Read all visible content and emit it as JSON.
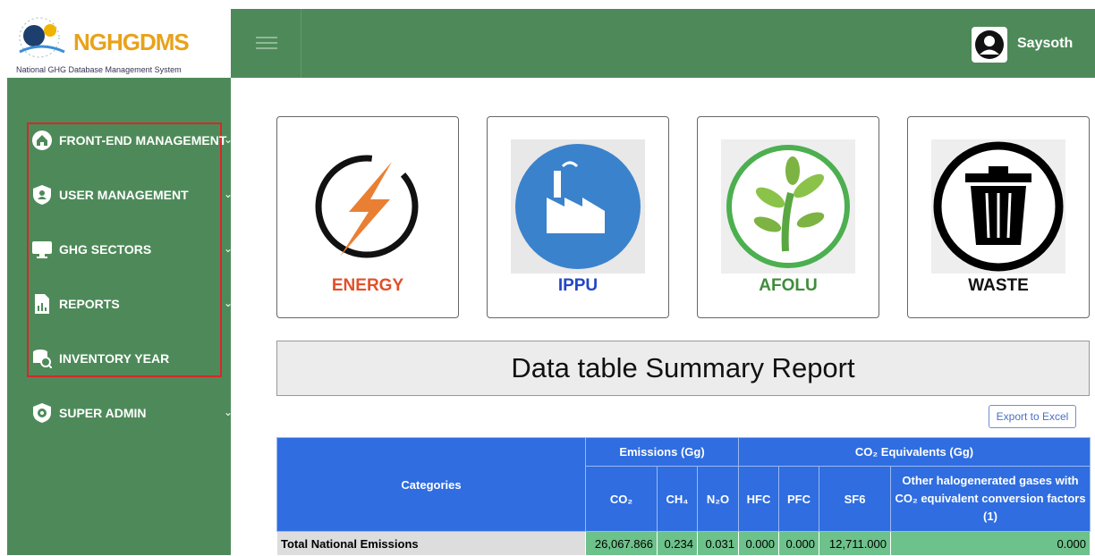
{
  "header": {
    "logo_title": "NGHGDMS",
    "logo_subtitle": "National GHG Database Management System",
    "user": "Saysoth"
  },
  "sidebar": {
    "items": [
      "FRONT-END MANAGEMENT",
      "USER MANAGEMENT",
      "GHG SECTORS",
      "REPORTS",
      "INVENTORY YEAR",
      "SUPER ADMIN"
    ]
  },
  "cards": [
    "ENERGY",
    "IPPU",
    "AFOLU",
    "WASTE"
  ],
  "report": {
    "title": "Data table Summary Report",
    "export": "Export to Excel"
  },
  "table": {
    "categories_header": "Categories",
    "group_headers": [
      "Emissions (Gg)",
      "CO₂ Equivalents (Gg)"
    ],
    "columns": [
      "CO₂",
      "CH₄",
      "N₂O",
      "HFC",
      "PFC",
      "SF6",
      "Other halogenerated gases with CO₂ equivalent conversion factors (1)"
    ],
    "rows": [
      [
        "Total National Emissions",
        "26,067.866",
        "0.234",
        "0.031",
        "0.000",
        "0.000",
        "12,711.000",
        "0.000"
      ]
    ]
  }
}
